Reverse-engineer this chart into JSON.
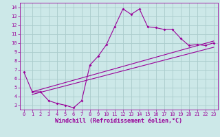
{
  "xlabel": "Windchill (Refroidissement éolien,°C)",
  "bg_color": "#cce8e8",
  "grid_color": "#aacccc",
  "line_color": "#990099",
  "xlim": [
    -0.5,
    23.5
  ],
  "ylim": [
    2.5,
    14.5
  ],
  "xticks": [
    0,
    1,
    2,
    3,
    4,
    5,
    6,
    7,
    8,
    9,
    10,
    11,
    12,
    13,
    14,
    15,
    16,
    17,
    18,
    19,
    20,
    21,
    22,
    23
  ],
  "yticks": [
    3,
    4,
    5,
    6,
    7,
    8,
    9,
    10,
    11,
    12,
    13,
    14
  ],
  "line1_x": [
    0,
    1,
    2,
    3,
    4,
    5,
    6,
    7,
    8,
    9,
    10,
    11,
    12,
    13,
    14,
    15,
    16,
    17,
    18,
    19,
    20,
    21,
    22,
    23
  ],
  "line1_y": [
    6.7,
    4.5,
    4.5,
    3.5,
    3.2,
    3.0,
    2.7,
    3.5,
    7.5,
    8.5,
    9.8,
    11.8,
    13.8,
    13.2,
    13.8,
    11.8,
    11.7,
    11.5,
    11.5,
    10.5,
    9.7,
    9.8,
    9.7,
    10.0
  ],
  "line2_x": [
    1,
    23
  ],
  "line2_y": [
    4.5,
    10.2
  ],
  "line3_x": [
    1,
    23
  ],
  "line3_y": [
    4.2,
    9.5
  ],
  "tick_fontsize": 5,
  "xlabel_fontsize": 6,
  "marker_size": 2.0,
  "line_width": 0.8
}
